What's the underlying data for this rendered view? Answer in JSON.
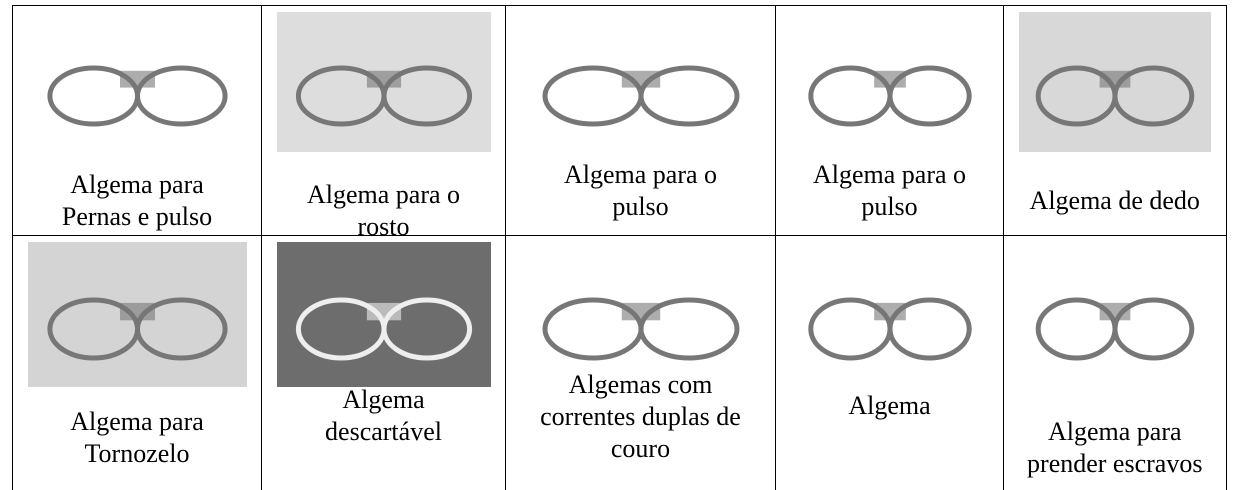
{
  "table": {
    "rows": [
      [
        [
          "Algema para",
          "Pernas e pulso"
        ],
        [
          "Algema para o",
          "rosto"
        ],
        [
          "Algema para o",
          "pulso"
        ],
        [
          "Algema para o",
          "pulso"
        ],
        [
          "Algema de dedo"
        ]
      ],
      [
        [
          "Algema para",
          "Tornozelo"
        ],
        [
          "Algema",
          "descartável"
        ],
        [
          "Algemas com",
          "correntes duplas de",
          "couro"
        ],
        [
          "Algema"
        ],
        [
          "Algema para",
          "prender escravos"
        ]
      ]
    ]
  }
}
